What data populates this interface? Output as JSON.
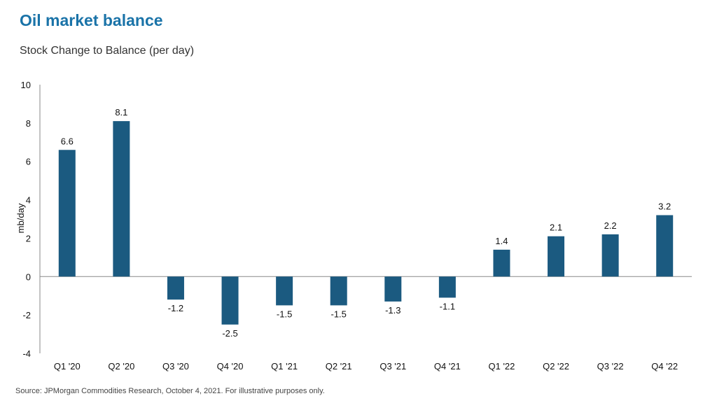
{
  "header": {
    "title": "Oil market balance",
    "subtitle": "Stock Change to Balance (per day)"
  },
  "footer": {
    "source": "Source: JPMorgan Commodities Research, October 4, 2021. For illustrative purposes only."
  },
  "colors": {
    "title": "#1a73a8",
    "bar": "#1b5a80"
  },
  "chart_data": {
    "type": "bar",
    "categories": [
      "Q1 '20",
      "Q2 '20",
      "Q3 '20",
      "Q4 '20",
      "Q1 '21",
      "Q2 '21",
      "Q3 '21",
      "Q4 '21",
      "Q1 '22",
      "Q2 '22",
      "Q3 '22",
      "Q4 '22"
    ],
    "values": [
      6.6,
      8.1,
      -1.2,
      -2.5,
      -1.5,
      -1.5,
      -1.3,
      -1.1,
      1.4,
      2.1,
      2.2,
      3.2
    ],
    "data_labels": [
      "6.6",
      "8.1",
      "-1.2",
      "-2.5",
      "-1.5",
      "-1.5",
      "-1.3",
      "-1.1",
      "1.4",
      "2.1",
      "2.2",
      "3.2"
    ],
    "ylabel": "mb/day",
    "ylim": [
      -4,
      10
    ],
    "yticks": [
      "-4",
      "-2",
      "0",
      "2",
      "4",
      "6",
      "8",
      "10"
    ],
    "grid": false,
    "legend": "none"
  }
}
